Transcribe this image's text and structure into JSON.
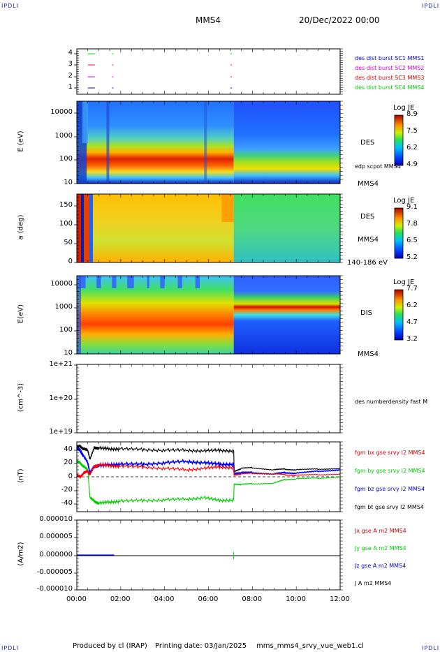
{
  "header": {
    "corner_left_top": "IPDLI",
    "corner_right_top": "IPDLI",
    "corner_left_bottom": "IPDLI",
    "corner_right_bottom": "IPDLI",
    "title": "MMS4",
    "datetime": "20/Dec/2022 00:00"
  },
  "footer": {
    "produced": "Produced by cl (IRAP)",
    "printing": "Printing date: 03/Jan/2025",
    "file": "mms_mms4_srvy_vue_web1.cl"
  },
  "colors": {
    "red": "#ff0000",
    "green": "#00cc00",
    "blue": "#0000ff",
    "magenta": "#cc00cc",
    "black": "#000000",
    "corner": "#1a1acc"
  },
  "chart_data": [
    {
      "type": "scatter",
      "panel": "burst availability",
      "y_ticks": [
        "4",
        "3",
        "2",
        "1"
      ],
      "ylim": [
        0.5,
        4.5
      ],
      "labels": [
        {
          "text": "des dist burst SC1 MMS1",
          "color": "#0000cc"
        },
        {
          "text": "des dist burst SC2 MMS2",
          "color": "#cc00cc"
        },
        {
          "text": "des dist burst SC3 MMS3",
          "color": "#cc0000"
        },
        {
          "text": "des dist burst SC4 MMS4",
          "color": "#00cc00"
        }
      ],
      "series": [
        {
          "level": 4,
          "color": "#00cc00",
          "hours": [
            0.5,
            1.6,
            7.0
          ]
        },
        {
          "level": 3,
          "color": "#ff0000",
          "hours": [
            0.5,
            1.6,
            7.0
          ]
        },
        {
          "level": 2,
          "color": "#cc00cc",
          "hours": [
            0.5,
            1.6,
            7.0
          ]
        },
        {
          "level": 1,
          "color": "#0000cc",
          "hours": [
            0.5,
            1.6,
            7.0
          ]
        }
      ]
    },
    {
      "type": "heatmap",
      "panel": "DES energy spectrogram",
      "ylabel": "E (eV)",
      "y_ticks": [
        "10000",
        "1000",
        "100",
        "10"
      ],
      "ylim": [
        10,
        30000
      ],
      "right_labels": [
        "DES",
        "edp scpot MMS4",
        "MMS4"
      ],
      "colorbar": {
        "title": "Log JE",
        "ticks": [
          "8.9",
          "7.5",
          "6.2",
          "4.9"
        ],
        "range": [
          4.9,
          8.9
        ]
      }
    },
    {
      "type": "heatmap",
      "panel": "DES pitch angle",
      "ylabel": "a (deg)",
      "y_ticks": [
        "150",
        "100",
        "50",
        "0"
      ],
      "ylim": [
        0,
        180
      ],
      "right_labels": [
        "DES",
        "MMS4",
        "140-186 eV"
      ],
      "colorbar": {
        "title": "Log JE",
        "ticks": [
          "9.1",
          "7.8",
          "6.5",
          "5.2"
        ],
        "range": [
          5.2,
          9.1
        ]
      }
    },
    {
      "type": "heatmap",
      "panel": "DIS energy spectrogram",
      "ylabel": "E(eV)",
      "y_ticks": [
        "10000",
        "1000",
        "100",
        "10"
      ],
      "ylim": [
        10,
        20000
      ],
      "right_labels": [
        "DIS",
        "MMS4"
      ],
      "colorbar": {
        "title": "Log JE",
        "ticks": [
          "7.7",
          "6.2",
          "4.7",
          "3.2"
        ],
        "range": [
          3.2,
          7.7
        ]
      }
    },
    {
      "type": "line",
      "panel": "density",
      "ylabel": "(cm^-3)",
      "y_ticks": [
        "1e+21",
        "1e+20",
        "1e+19"
      ],
      "ylim": [
        1e+19,
        1e+21
      ],
      "right_labels": [
        "des numberdensity fast M"
      ],
      "series": []
    },
    {
      "type": "line",
      "panel": "magnetic field",
      "ylabel": "(nT)",
      "y_ticks": [
        "40",
        "20",
        "0",
        "-20",
        "-40"
      ],
      "ylim": [
        -50,
        50
      ],
      "right_labels": [
        {
          "text": "fgm bx gse srvy l2 MMS4",
          "color": "#cc0000"
        },
        {
          "text": "fgm by gse srvy l2 MMS4",
          "color": "#00cc00"
        },
        {
          "text": "fgm bz gse srvy l2 MMS4",
          "color": "#0000cc"
        },
        {
          "text": "fgm bt gse srvy l2 MMS4",
          "color": "#000000"
        }
      ],
      "series": [
        {
          "name": "fgm bt gse srvy l2 MMS4",
          "color": "#000000",
          "x": [
            0,
            0.15,
            0.3,
            0.5,
            0.6,
            0.8,
            1.0,
            1.5,
            2.0,
            3.0,
            4.0,
            5.0,
            5.8,
            6.5,
            7.15,
            7.17,
            7.5,
            8.0,
            9.0,
            9.5,
            10.0,
            11.0,
            12.0
          ],
          "y": [
            42,
            44,
            40,
            38,
            25,
            42,
            41,
            40,
            40,
            39,
            38,
            38,
            37,
            38,
            37,
            8,
            12,
            13,
            10,
            11,
            10,
            11,
            12
          ]
        },
        {
          "name": "fgm by gse srvy l2 MMS4",
          "color": "#00cc00",
          "x": [
            0,
            0.15,
            0.3,
            0.5,
            0.6,
            0.8,
            1.0,
            1.5,
            2.0,
            3.0,
            4.0,
            5.0,
            5.8,
            6.5,
            7.15,
            7.17,
            7.5,
            8.0,
            9.0,
            9.5,
            10.0,
            11.0,
            12.0
          ],
          "y": [
            22,
            20,
            15,
            10,
            -30,
            -35,
            -38,
            -36,
            -35,
            -34,
            -33,
            -32,
            -30,
            -34,
            -33,
            -10,
            -11,
            -10,
            -9,
            -4,
            -3,
            -2,
            0
          ]
        },
        {
          "name": "fgm bz gse srvy l2 MMS4",
          "color": "#0000ff",
          "x": [
            0,
            0.15,
            0.3,
            0.5,
            0.6,
            0.8,
            1.0,
            1.5,
            2.0,
            3.0,
            4.0,
            5.0,
            5.8,
            6.5,
            7.15,
            7.17,
            7.5,
            8.0,
            9.0,
            9.5,
            10.0,
            11.0,
            12.0
          ],
          "y": [
            40,
            38,
            30,
            20,
            5,
            15,
            16,
            17,
            18,
            18,
            20,
            22,
            20,
            18,
            18,
            5,
            6,
            6,
            4,
            6,
            5,
            8,
            10
          ]
        },
        {
          "name": "fgm bx gse srvy l2 MMS4",
          "color": "#ff0000",
          "x": [
            0,
            0.15,
            0.3,
            0.5,
            0.6,
            0.8,
            1.0,
            1.5,
            2.0,
            3.0,
            4.0,
            5.0,
            5.8,
            6.5,
            7.15,
            7.17,
            7.5,
            8.0,
            9.0,
            9.5,
            10.0,
            11.0,
            12.0
          ],
          "y": [
            2,
            0,
            5,
            8,
            3,
            15,
            17,
            16,
            15,
            14,
            12,
            10,
            12,
            14,
            13,
            3,
            4,
            5,
            4,
            3,
            2,
            3,
            4
          ]
        }
      ]
    },
    {
      "type": "line",
      "panel": "current density",
      "ylabel": "(A/m2)",
      "y_ticks": [
        "0.000010",
        "0.000005",
        "0.000000",
        "-0.000005",
        "-0.000010"
      ],
      "ylim": [
        -1e-05,
        1e-05
      ],
      "right_labels": [
        {
          "text": "Jx gse A m2 MMS4",
          "color": "#cc0000"
        },
        {
          "text": "Jy gse A m2 MMS4",
          "color": "#00cc00"
        },
        {
          "text": "Jz gse A m2 MMS4",
          "color": "#0000cc"
        },
        {
          "text": "J A m2 MMS4",
          "color": "#000000"
        }
      ],
      "series": [
        {
          "name": "J A m2 MMS4",
          "color": "#000000",
          "x": [
            0,
            12
          ],
          "y": [
            0,
            0
          ]
        }
      ]
    }
  ],
  "x_axis": {
    "ticks": [
      "00:00",
      "02:00",
      "04:00",
      "06:00",
      "08:00",
      "10:00",
      "12:00"
    ],
    "xlim": [
      0,
      12
    ]
  }
}
